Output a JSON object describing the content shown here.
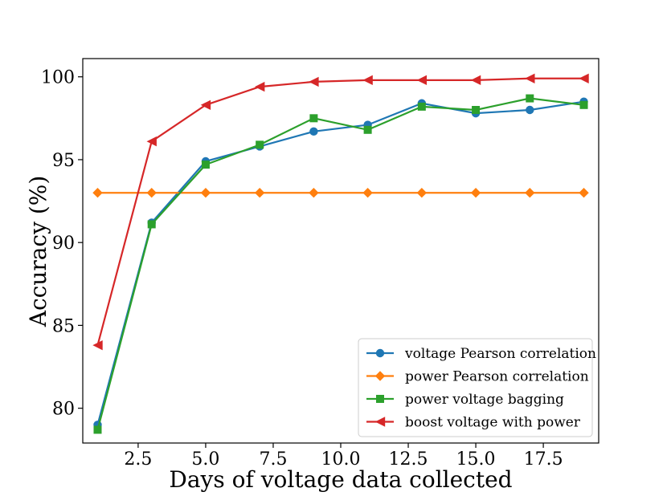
{
  "chart_data": {
    "type": "line",
    "xlabel": "Days of voltage data collected",
    "ylabel": "Accuracy (%)",
    "xlim": [
      0.45,
      19.55
    ],
    "ylim": [
      77.9,
      101.1
    ],
    "xticks": [
      2.5,
      5.0,
      7.5,
      10.0,
      12.5,
      15.0,
      17.5
    ],
    "xtick_labels": [
      "2.5",
      "5.0",
      "7.5",
      "10.0",
      "12.5",
      "15.0",
      "17.5"
    ],
    "yticks": [
      80,
      85,
      90,
      95,
      100
    ],
    "ytick_labels": [
      "80",
      "85",
      "90",
      "95",
      "100"
    ],
    "grid": false,
    "legend_position": "lower-right",
    "x": [
      1,
      3,
      5,
      7,
      9,
      11,
      13,
      15,
      17,
      19
    ],
    "series": [
      {
        "name": "voltage Pearson correlation",
        "color": "#1f77b4",
        "marker": "circle",
        "values": [
          79.0,
          91.2,
          94.9,
          95.8,
          96.7,
          97.1,
          98.4,
          97.8,
          98.0,
          98.5
        ]
      },
      {
        "name": "power Pearson correlation",
        "color": "#ff7f0e",
        "marker": "diamond",
        "values": [
          93.0,
          93.0,
          93.0,
          93.0,
          93.0,
          93.0,
          93.0,
          93.0,
          93.0,
          93.0
        ]
      },
      {
        "name": "power voltage bagging",
        "color": "#2ca02c",
        "marker": "square",
        "values": [
          78.7,
          91.1,
          94.7,
          95.9,
          97.5,
          96.8,
          98.2,
          98.0,
          98.7,
          98.3
        ]
      },
      {
        "name": "boost voltage with power",
        "color": "#d62728",
        "marker": "triangle-left",
        "values": [
          83.8,
          96.1,
          98.3,
          99.4,
          99.7,
          99.8,
          99.8,
          99.8,
          99.9,
          99.9
        ]
      }
    ]
  }
}
